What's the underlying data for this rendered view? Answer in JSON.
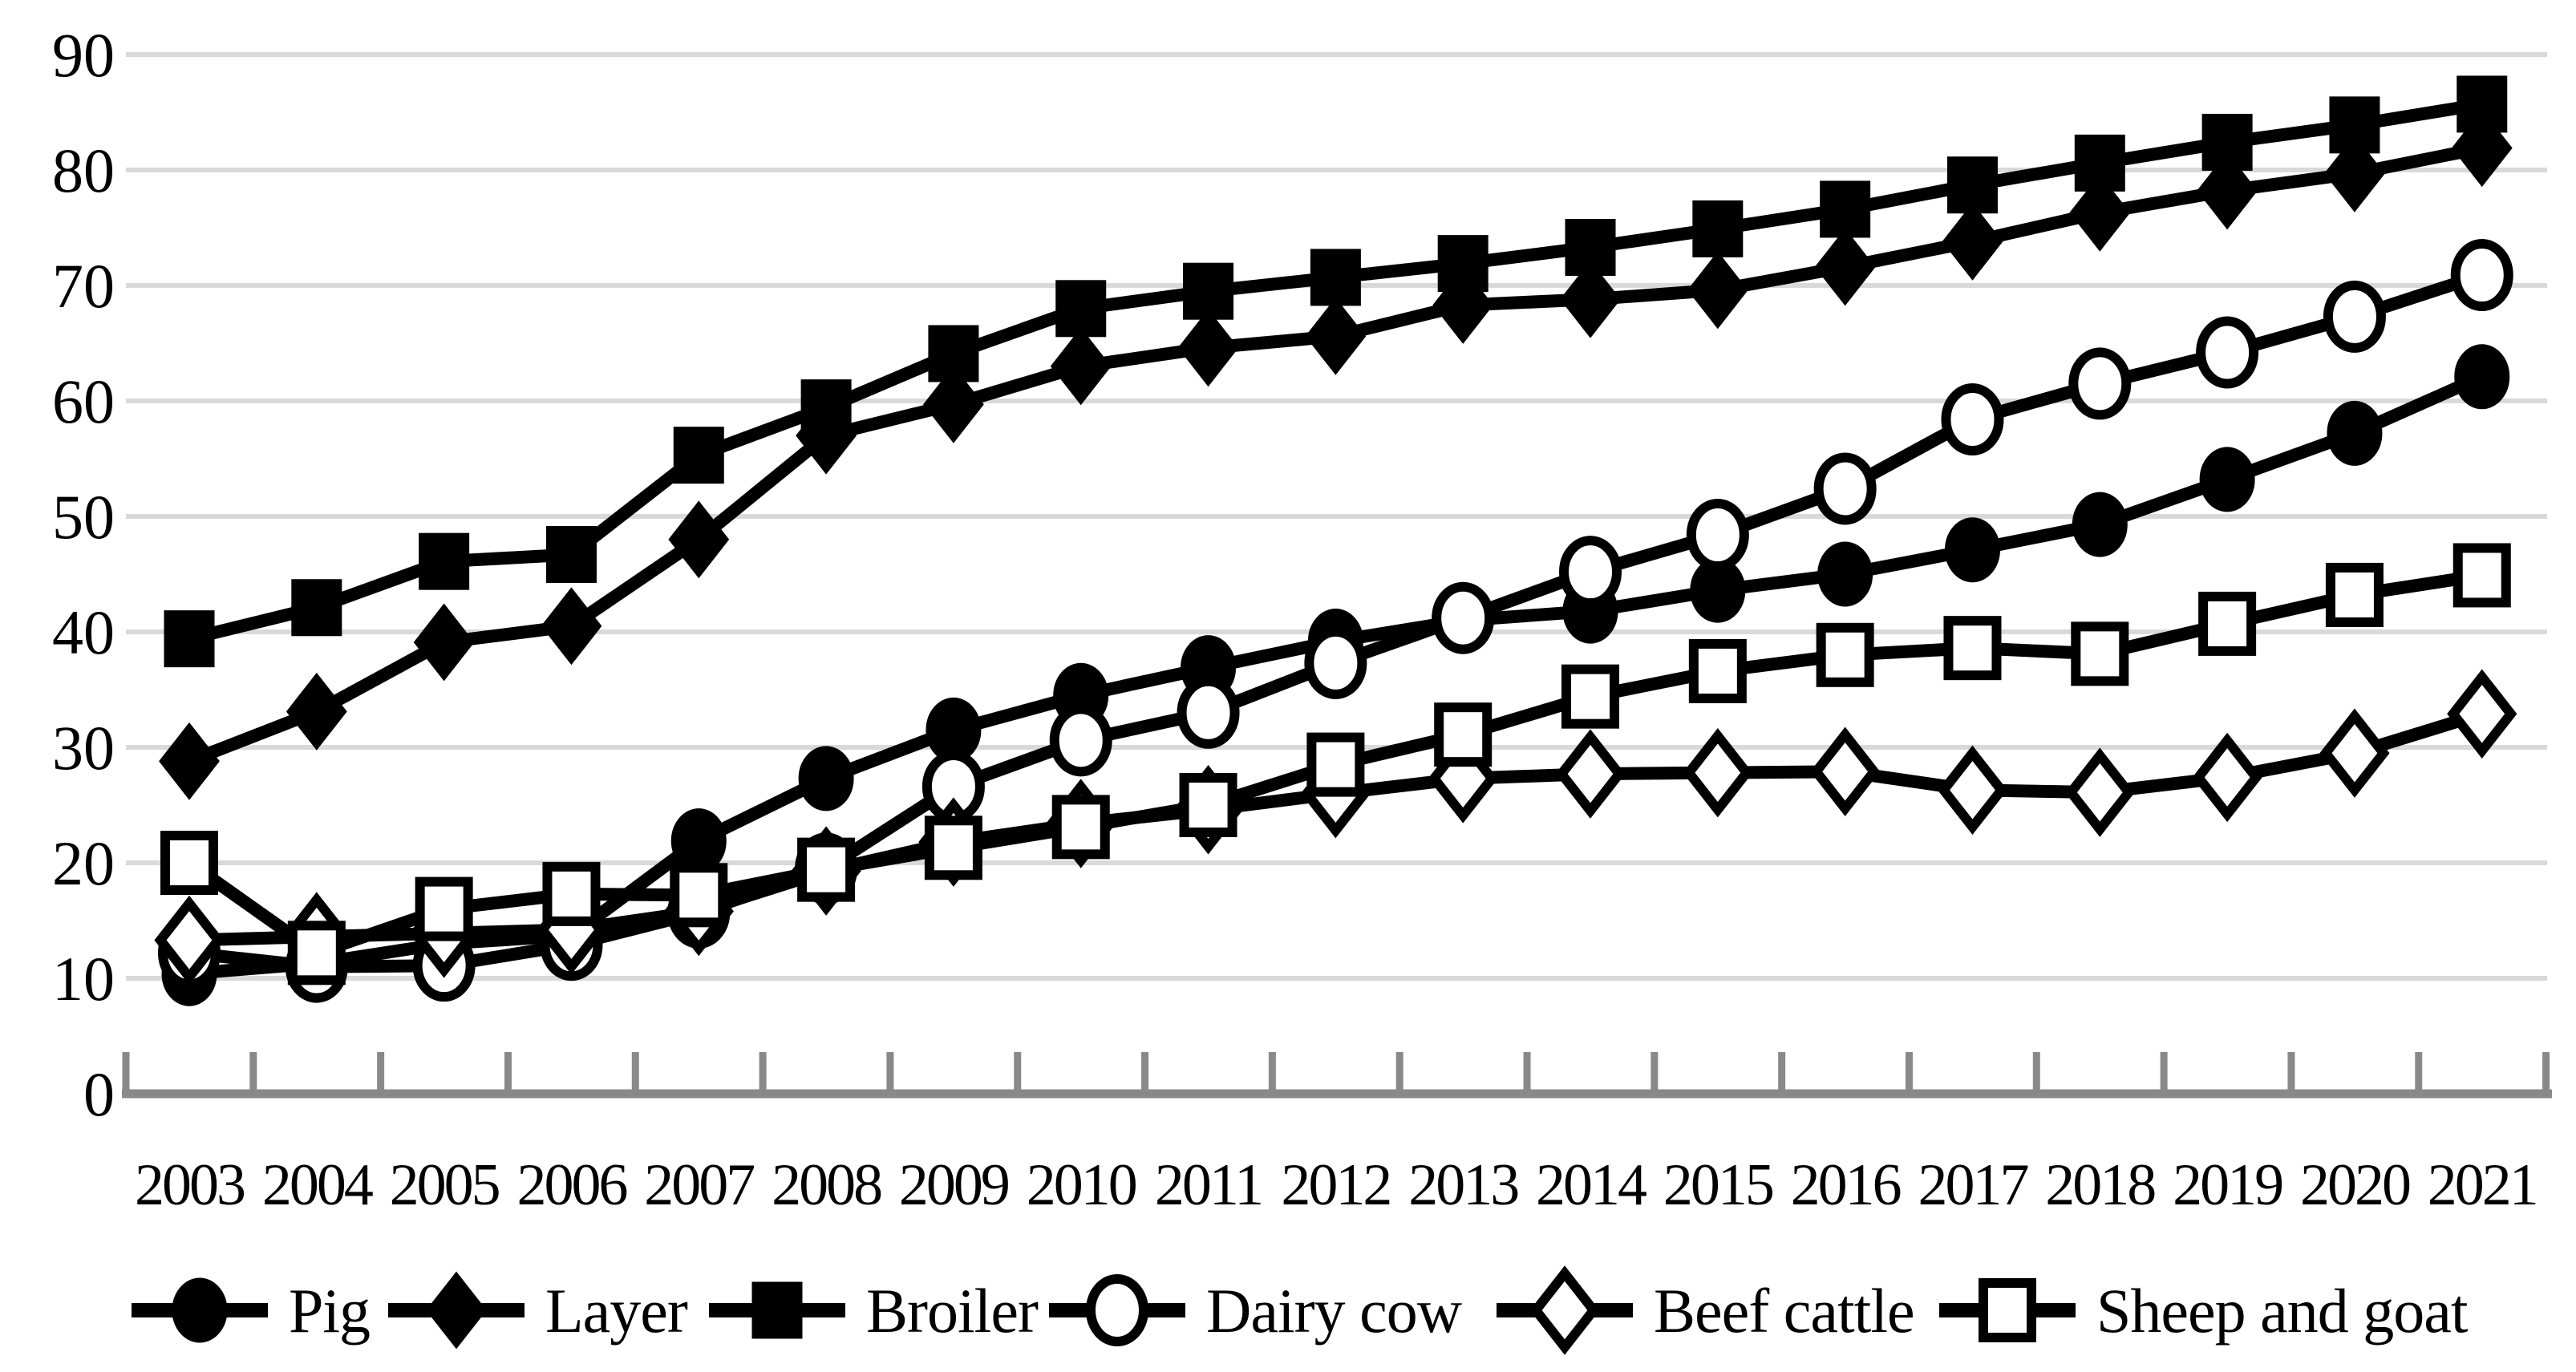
{
  "chart_data": {
    "type": "line",
    "title": "",
    "xlabel": "",
    "ylabel": "",
    "x": [
      2003,
      2004,
      2005,
      2006,
      2007,
      2008,
      2009,
      2010,
      2011,
      2012,
      2013,
      2014,
      2015,
      2016,
      2017,
      2018,
      2019,
      2020,
      2021
    ],
    "ylim": [
      0,
      90
    ],
    "ytick_interval": 10,
    "yticks": [
      0,
      10,
      20,
      30,
      40,
      50,
      60,
      70,
      80,
      90
    ],
    "grid": "horizontal light-gray gridlines, no vertical gridlines",
    "legend_position": "bottom",
    "series": [
      {
        "name": "Pig",
        "marker": "circle",
        "marker_fill": "filled",
        "values": [
          10.4,
          11.3,
          13.0,
          13.7,
          21.9,
          27.3,
          31.5,
          34.5,
          36.9,
          39.2,
          41.0,
          41.8,
          43.6,
          45.0,
          47.1,
          49.3,
          53.2,
          57.2,
          62.1
        ]
      },
      {
        "name": "Layer",
        "marker": "diamond",
        "marker_fill": "filled",
        "values": [
          28.8,
          33.1,
          39.1,
          40.5,
          48.0,
          57.0,
          59.7,
          63.0,
          64.6,
          65.6,
          68.3,
          68.8,
          69.6,
          71.6,
          73.8,
          76.3,
          78.2,
          79.7,
          81.9
        ]
      },
      {
        "name": "Broiler",
        "marker": "square",
        "marker_fill": "filled",
        "values": [
          39.4,
          42.1,
          46.1,
          46.7,
          55.3,
          59.4,
          64.1,
          68.0,
          69.5,
          70.7,
          71.9,
          73.3,
          74.9,
          76.6,
          78.7,
          80.6,
          82.4,
          83.9,
          85.7
        ]
      },
      {
        "name": "Dairy cow",
        "marker": "circle",
        "marker_fill": "open",
        "values": [
          12.2,
          11.0,
          11.1,
          12.9,
          15.7,
          19.5,
          26.6,
          30.6,
          33.0,
          37.3,
          41.2,
          45.2,
          48.4,
          52.4,
          58.4,
          61.5,
          64.2,
          67.3,
          70.9
        ]
      },
      {
        "name": "Beef cattle",
        "marker": "diamond",
        "marker_fill": "open",
        "values": [
          13.3,
          13.6,
          13.9,
          14.2,
          15.8,
          19.3,
          21.8,
          23.4,
          24.6,
          26.0,
          27.3,
          27.7,
          27.8,
          27.9,
          26.3,
          26.1,
          27.4,
          29.5,
          32.9
        ]
      },
      {
        "name": "Sheep and goat",
        "marker": "square",
        "marker_fill": "open",
        "values": [
          20.0,
          12.2,
          16.0,
          17.3,
          17.2,
          19.4,
          21.3,
          23.1,
          25.0,
          28.5,
          31.1,
          34.4,
          36.6,
          38.0,
          38.6,
          38.1,
          40.7,
          43.2,
          44.9
        ]
      }
    ],
    "colors": {
      "series_line": "#000000",
      "open_marker_fill": "#ffffff",
      "gridline": "#d9d9d9",
      "axis_line": "#898989",
      "text": "#000000",
      "background": "#ffffff"
    }
  }
}
